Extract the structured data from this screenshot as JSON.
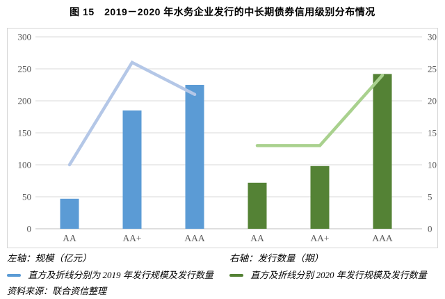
{
  "title": "图 15　2019－2020 年水务企业发行的中长期债券信用级别分布情况",
  "chart_data": {
    "type": "combo-bar-line",
    "categories": [
      "AA",
      "AA+",
      "AAA",
      "AA",
      "AA+",
      "AAA"
    ],
    "left_axis": {
      "caption": "左轴：规模（亿元）",
      "min": 0,
      "max": 300,
      "ticks": [
        300,
        250,
        200,
        150,
        100,
        50,
        0
      ]
    },
    "right_axis": {
      "caption": "右轴：发行数量（期）",
      "min": 0,
      "max": 30,
      "ticks": [
        30,
        25,
        20,
        15,
        10,
        5,
        0
      ]
    },
    "grid": true,
    "series": [
      {
        "name": "2019年发行规模",
        "kind": "bar",
        "axis": "left",
        "color": "#5b9bd5",
        "slots": [
          0,
          1,
          2
        ],
        "values": [
          47,
          185,
          225
        ]
      },
      {
        "name": "2020年发行规模",
        "kind": "bar",
        "axis": "left",
        "color": "#548235",
        "slots": [
          3,
          4,
          5
        ],
        "values": [
          72,
          98,
          242
        ]
      },
      {
        "name": "2019年发行数量",
        "kind": "line",
        "axis": "right",
        "color": "#b4c7e7",
        "slots": [
          0,
          1,
          2
        ],
        "values": [
          10,
          26,
          21
        ]
      },
      {
        "name": "2020年发行数量",
        "kind": "line",
        "axis": "right",
        "color": "#a9d18e",
        "slots": [
          3,
          4,
          5
        ],
        "values": [
          13,
          13,
          24
        ]
      }
    ],
    "tick_label_color": "#595959",
    "gridline_color": "#d9d9d9",
    "baseline_color": "#bfbfbf"
  },
  "axis_captions": {
    "left": "左轴：规模（亿元）",
    "right": "右轴：发行数量（期）"
  },
  "legend": [
    {
      "swatch_color": "#5b9bd5",
      "label": "直方及折线分别为 2019 年发行规模及发行数量"
    },
    {
      "swatch_color": "#548235",
      "label": "直方及折线分别 2020 年发行规模及发行数量"
    }
  ],
  "source": "资料来源：联合资信整理"
}
